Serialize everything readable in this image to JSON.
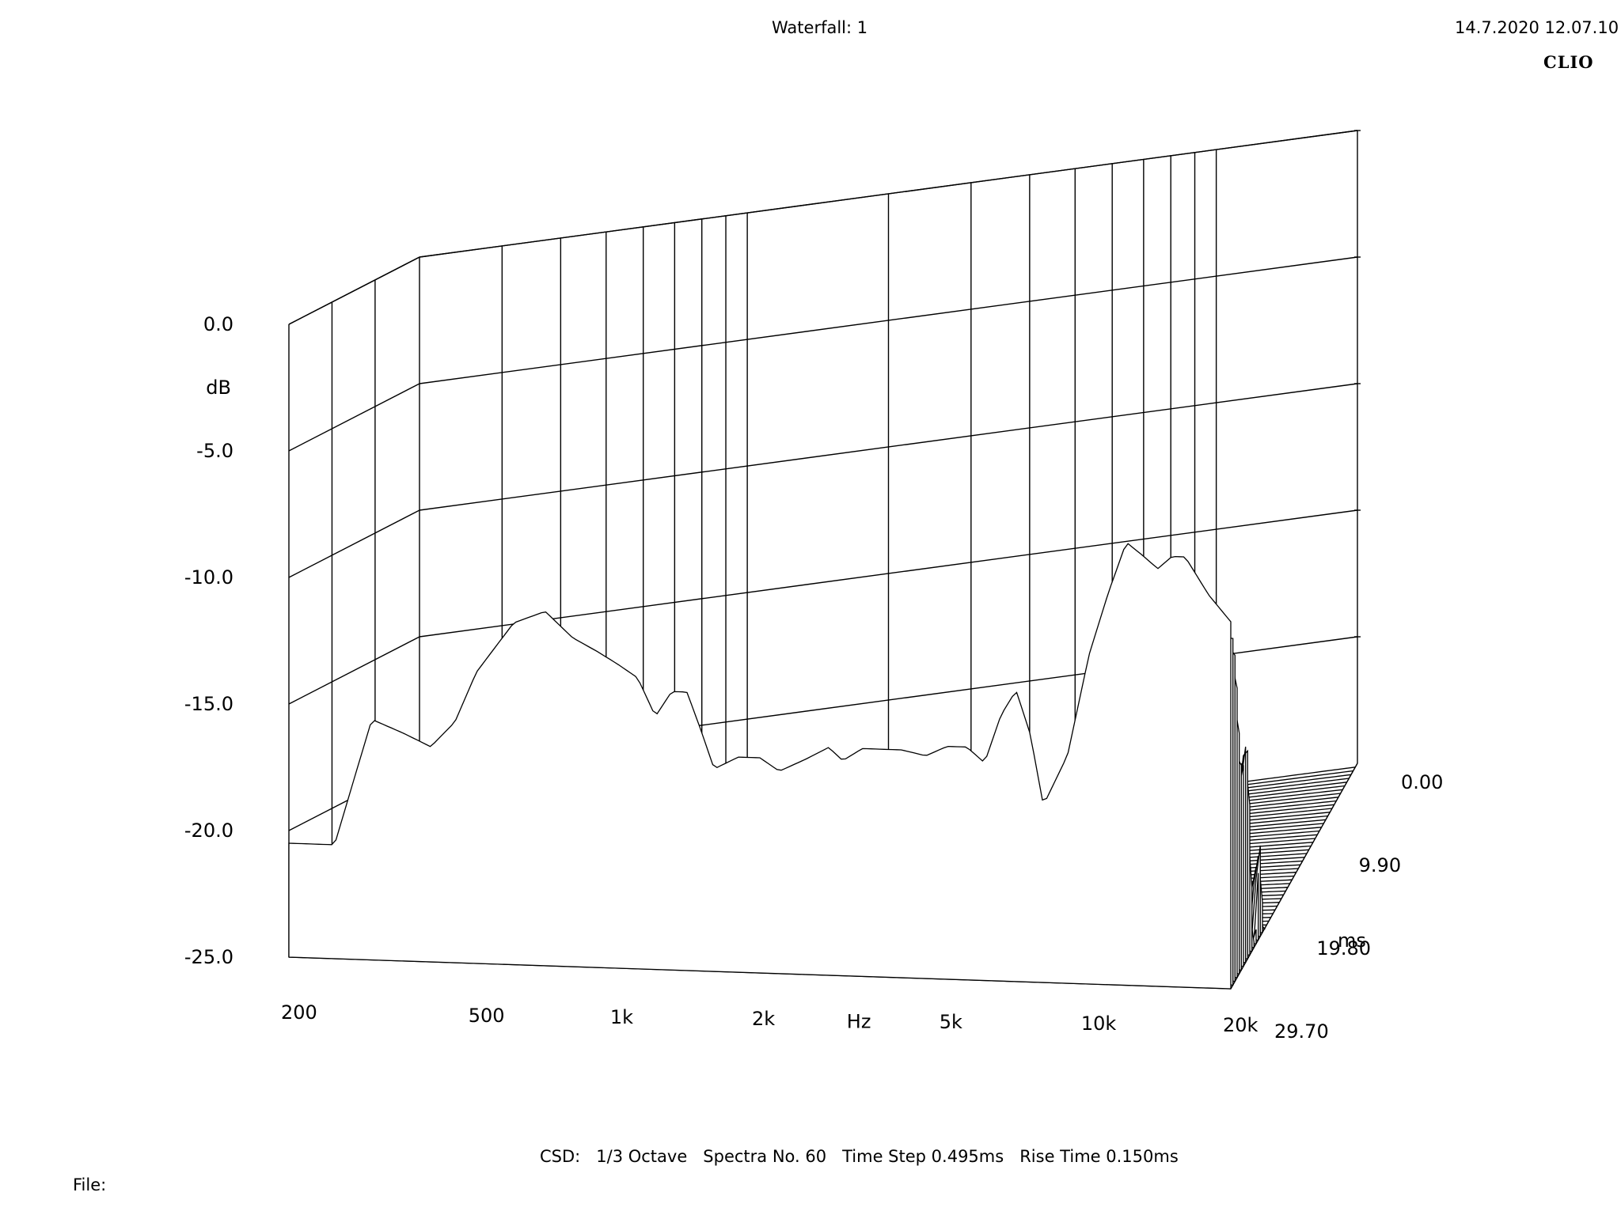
{
  "header": {
    "title": "Waterfall: 1",
    "timestamp": "14.7.2020 12.07.10",
    "brand": "CLIO"
  },
  "footer": {
    "parameters": "CSD:   1/3 Octave   Spectra No. 60   Time Step 0.495ms   Rise Time 0.150ms",
    "file_label": "File:"
  },
  "chart_data": {
    "type": "waterfall",
    "title": "Waterfall: 1",
    "y_axis": {
      "unit": "dB",
      "ticks": [
        "0.0",
        "-5.0",
        "-10.0",
        "-15.0",
        "-20.0",
        "-25.0"
      ],
      "range": [
        -25,
        0
      ]
    },
    "x_axis": {
      "unit": "Hz",
      "ticks": [
        "200",
        "500",
        "1k",
        "2k",
        "5k",
        "10k",
        "20k"
      ],
      "range": [
        200,
        20000
      ],
      "scale": "log"
    },
    "z_axis": {
      "unit": "ms",
      "ticks": [
        "0.00",
        "9.90",
        "19.80",
        "29.70"
      ],
      "range": [
        0,
        29.7
      ]
    },
    "spectra_count": 60,
    "time_step_ms": 0.495,
    "rise_time_ms": 0.15,
    "smoothing": "1/3 Octave",
    "grid": true,
    "first_slice": {
      "freq": [
        200,
        250,
        300,
        350,
        400,
        450,
        500,
        600,
        700,
        800,
        900,
        1000,
        1100,
        1200,
        1300,
        1400,
        1500,
        1600,
        1800,
        2000,
        2200,
        2500,
        2800,
        3000,
        3300,
        3600,
        4000,
        4500,
        5000,
        5500,
        6000,
        6500,
        7000,
        7500,
        8000,
        9000,
        10000,
        11000,
        12000,
        13000,
        14000,
        15000,
        16000,
        18000,
        20000
      ],
      "db": [
        -20.5,
        -20.5,
        -15.5,
        -16.0,
        -16.5,
        -15.5,
        -13.5,
        -11.5,
        -11.0,
        -12.0,
        -12.5,
        -13.0,
        -13.5,
        -15.0,
        -14.0,
        -14.0,
        -15.5,
        -17.0,
        -16.5,
        -16.5,
        -17.0,
        -16.5,
        -16.0,
        -16.5,
        -16.0,
        -16.0,
        -16.0,
        -16.2,
        -15.8,
        -15.8,
        -16.4,
        -14.5,
        -13.5,
        -15.2,
        -18.0,
        -16.0,
        -12.0,
        -9.5,
        -7.5,
        -8.0,
        -8.5,
        -8.0,
        -8.0,
        -9.5,
        -10.5
      ]
    },
    "series": [
      {
        "t_ms": 0.0,
        "description_values": []
      }
    ]
  }
}
